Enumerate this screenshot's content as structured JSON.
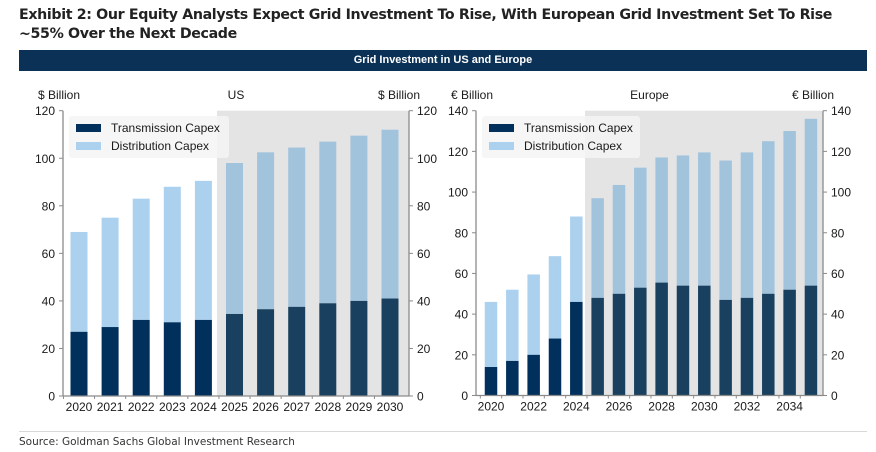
{
  "title": "Exhibit 2: Our Equity Analysts Expect Grid Investment To Rise, With European Grid Investment Set To Rise ~55% Over the Next Decade",
  "banner": "Grid Investment in US and Europe",
  "source": "Source: Goldman Sachs Global Investment Research",
  "colors": {
    "transmission": "#00305b",
    "distribution": "#acd1ee",
    "transmission_forecast": "#19415f",
    "distribution_forecast": "#a2c3dc",
    "forecast_shade": "#e4e4e4"
  },
  "chart_data": [
    {
      "type": "bar",
      "stacked": true,
      "title": "US",
      "ylabel_left": "$ Billion",
      "ylabel_right": "$ Billion",
      "ylim": [
        0,
        120
      ],
      "yticks": [
        0,
        20,
        40,
        60,
        80,
        100,
        120
      ],
      "categories": [
        "2020",
        "2021",
        "2022",
        "2023",
        "2024",
        "2025",
        "2026",
        "2027",
        "2028",
        "2029",
        "2030"
      ],
      "xtick_labels": [
        "2020",
        "2021",
        "2022",
        "2023",
        "2024",
        "2025",
        "2026",
        "2027",
        "2028",
        "2029",
        "2030"
      ],
      "forecast_start": "2025",
      "legend": [
        "Transmission Capex",
        "Distribution Capex"
      ],
      "legend_position": "top-left",
      "series": [
        {
          "name": "Transmission Capex",
          "values": [
            27,
            29,
            32,
            31,
            32,
            34.5,
            36.5,
            37.5,
            39,
            40,
            41
          ]
        },
        {
          "name": "Distribution Capex",
          "values": [
            42,
            46,
            51,
            57,
            58.5,
            63.5,
            66,
            67,
            68,
            69.5,
            71
          ]
        }
      ]
    },
    {
      "type": "bar",
      "stacked": true,
      "title": "Europe",
      "ylabel_left": "€ Billion",
      "ylabel_right": "€ Billion",
      "ylim": [
        0,
        140
      ],
      "yticks": [
        0,
        20,
        40,
        60,
        80,
        100,
        120,
        140
      ],
      "categories": [
        "2020",
        "2021",
        "2022",
        "2023",
        "2024",
        "2025",
        "2026",
        "2027",
        "2028",
        "2029",
        "2030",
        "2031",
        "2032",
        "2033",
        "2034",
        "2035"
      ],
      "xtick_labels": [
        "2020",
        "",
        "2022",
        "",
        "2024",
        "",
        "2026",
        "",
        "2028",
        "",
        "2030",
        "",
        "2032",
        "",
        "2034",
        ""
      ],
      "forecast_start": "2025",
      "legend": [
        "Transmission Capex",
        "Distribution Capex"
      ],
      "legend_position": "top-left",
      "series": [
        {
          "name": "Transmission Capex",
          "values": [
            14,
            17,
            20,
            28,
            46,
            48,
            50,
            53,
            55.5,
            54,
            54,
            47,
            48,
            50,
            52,
            54
          ]
        },
        {
          "name": "Distribution Capex",
          "values": [
            32,
            35,
            39.5,
            40.5,
            42,
            49,
            53.5,
            59,
            61.5,
            64,
            65.5,
            68.5,
            71.5,
            75,
            78,
            82
          ]
        }
      ]
    }
  ]
}
